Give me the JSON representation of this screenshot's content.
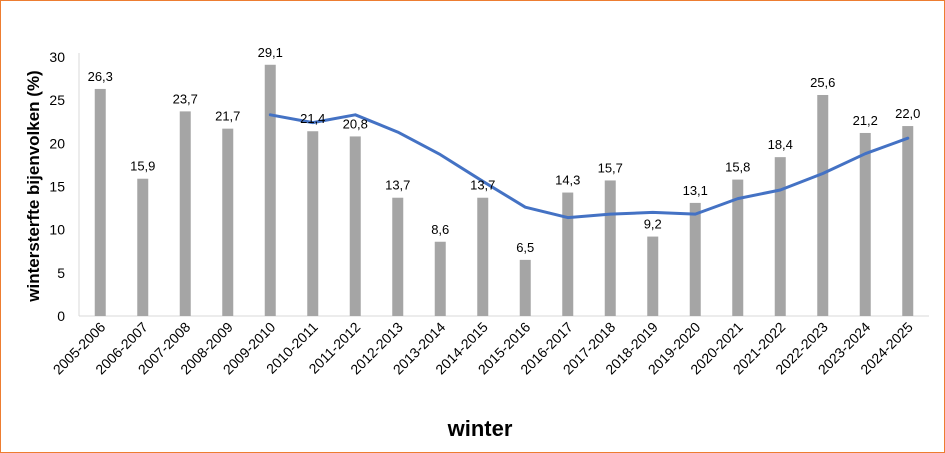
{
  "chart_data": {
    "type": "bar",
    "xlabel": "winter",
    "ylabel": "wintersterfte bijenvolken (%)",
    "ylim": [
      0,
      30
    ],
    "yticks": [
      0,
      5,
      10,
      15,
      20,
      25,
      30
    ],
    "grid": false,
    "categories": [
      "2005-2006",
      "2006-2007",
      "2007-2008",
      "2008-2009",
      "2009-2010",
      "2010-2011",
      "2011-2012",
      "2012-2013",
      "2013-2014",
      "2014-2015",
      "2015-2016",
      "2016-2017",
      "2017-2018",
      "2018-2019",
      "2019-2020",
      "2020-2021",
      "2021-2022",
      "2022-2023",
      "2023-2024",
      "2024-2025"
    ],
    "series": [
      {
        "type": "bar",
        "color": "#A5A5A5",
        "values": [
          26.3,
          15.9,
          23.7,
          21.7,
          29.1,
          21.4,
          20.8,
          13.7,
          8.6,
          13.7,
          6.5,
          14.3,
          15.7,
          9.2,
          13.1,
          15.8,
          18.4,
          25.6,
          21.2,
          22.0
        ],
        "labels": [
          "26,3",
          "15,9",
          "23,7",
          "21,7",
          "29,1",
          "21,4",
          "20,8",
          "13,7",
          "8,6",
          "13,7",
          "6,5",
          "14,3",
          "15,7",
          "9,2",
          "13,1",
          "15,8",
          "18,4",
          "25,6",
          "21,2",
          "22,0"
        ]
      },
      {
        "type": "line",
        "color": "#4472C4",
        "values": [
          null,
          null,
          null,
          null,
          23.3,
          22.4,
          23.3,
          21.3,
          18.7,
          15.6,
          12.6,
          11.4,
          11.8,
          12.0,
          11.8,
          13.6,
          14.6,
          16.5,
          18.8,
          20.6
        ]
      }
    ]
  }
}
